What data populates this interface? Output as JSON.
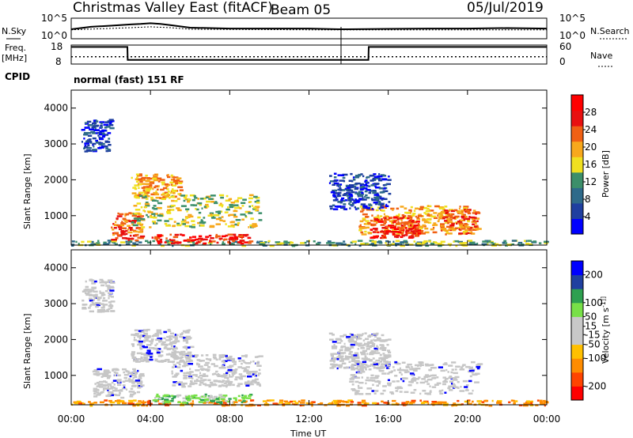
{
  "header": {
    "title": "Christmas Valley East (fitACF)",
    "beam": "Beam 05",
    "date": "05/Jul/2019"
  },
  "top_panels": {
    "n_sky_label": "N.Sky",
    "n_search_label": "N.Search",
    "count_top_tick": "10^5",
    "count_bottom_tick": "10^0",
    "freq_label_line1": "Freq.",
    "freq_label_line2": "[MHz]",
    "freq_ticks": [
      "18",
      "8"
    ],
    "nave_label": "Nave",
    "nave_ticks": [
      "60",
      "0"
    ],
    "cpid_label": "CPID",
    "cpid_value": "normal (fast) 151 RF"
  },
  "colors": {
    "power_scale": [
      "#0000ff",
      "#1f3fa0",
      "#2e6a8a",
      "#3c8f6a",
      "#f0e020",
      "#f7a81c",
      "#f06014",
      "#e81010",
      "#ff0000"
    ],
    "velocity_scale": [
      "#ff0000",
      "#ff4400",
      "#ff8c00",
      "#ffc000",
      "#c8c8c8",
      "#c8c8c8",
      "#78e048",
      "#2ea050",
      "#2040a0",
      "#0000ff"
    ],
    "ground_scatter": "#c6c6c6"
  },
  "chart_data": [
    {
      "type": "line",
      "title": "",
      "series": [
        {
          "name": "N.Sky",
          "x": [
            "00:00",
            "01:00",
            "02:00",
            "03:00",
            "03:30",
            "04:00",
            "04:30",
            "05:00",
            "06:00",
            "08:00",
            "10:00",
            "12:00",
            "13:30",
            "14:00",
            "16:00",
            "18:00",
            "20:00",
            "22:00",
            "24:00"
          ],
          "values": [
            200,
            800,
            1500,
            3000,
            4000,
            6000,
            4000,
            2000,
            500,
            300,
            300,
            300,
            200,
            200,
            250,
            300,
            300,
            400,
            300
          ]
        },
        {
          "name": "N.Search",
          "x": [
            "00:00",
            "03:00",
            "04:00",
            "05:00",
            "06:00",
            "12:00",
            "16:00",
            "20:00",
            "24:00"
          ],
          "values": [
            150,
            500,
            800,
            500,
            200,
            150,
            150,
            150,
            150
          ]
        }
      ],
      "ylim": [
        "10^0",
        "10^5"
      ],
      "ytick_labels": [
        "10^5",
        "10^0"
      ]
    },
    {
      "type": "line",
      "title": "",
      "series": [
        {
          "name": "Freq.",
          "x": [
            "00:00",
            "02:50",
            "02:51",
            "15:00",
            "15:01",
            "24:00"
          ],
          "values": [
            17.0,
            17.0,
            10.2,
            10.2,
            17.0,
            17.0
          ]
        },
        {
          "name": "Nave",
          "x": [
            "00:00",
            "24:00"
          ],
          "values": [
            23,
            23
          ]
        }
      ],
      "ylabel": "Freq. [MHz]",
      "ylim": [
        8,
        18
      ],
      "ytick_labels": [
        "18",
        "8"
      ],
      "y2label": "Nave",
      "y2lim": [
        0,
        60
      ],
      "y2tick_labels": [
        "60",
        "0"
      ]
    },
    {
      "type": "heatmap",
      "title": "",
      "xlabel": "",
      "ylabel": "Slant Range [km]",
      "colorbar_label": "Power [dB]",
      "colorbar_ticks": [
        4,
        8,
        12,
        16,
        20,
        24,
        28
      ],
      "clim": [
        0,
        32
      ],
      "xlim": [
        "00:00",
        "24:00"
      ],
      "ylim": [
        180,
        4500
      ],
      "yticks": [
        1000,
        2000,
        3000,
        4000
      ],
      "xtick_labels": [],
      "patches": [
        {
          "t0": 0.0,
          "t1": 24.0,
          "r0": 180,
          "r1": 330,
          "level": 3
        },
        {
          "t0": 2.0,
          "t1": 3.5,
          "r0": 330,
          "r1": 1100,
          "level": 6
        },
        {
          "t0": 3.0,
          "t1": 5.5,
          "r0": 1500,
          "r1": 2200,
          "level": 5
        },
        {
          "t0": 3.0,
          "t1": 9.5,
          "r0": 700,
          "r1": 1600,
          "level": 4
        },
        {
          "t0": 4.0,
          "t1": 9.0,
          "r0": 250,
          "r1": 500,
          "level": 7
        },
        {
          "t0": 0.5,
          "t1": 2.0,
          "r0": 2800,
          "r1": 3700,
          "level": 1
        },
        {
          "t0": 14.5,
          "t1": 20.0,
          "r0": 500,
          "r1": 1300,
          "level": 5
        },
        {
          "t0": 15.0,
          "t1": 17.5,
          "r0": 400,
          "r1": 1000,
          "level": 7
        },
        {
          "t0": 18.5,
          "t1": 20.5,
          "r0": 500,
          "r1": 1200,
          "level": 6
        },
        {
          "t0": 13.0,
          "t1": 16.0,
          "r0": 1200,
          "r1": 2200,
          "level": 1
        }
      ]
    },
    {
      "type": "heatmap",
      "title": "",
      "xlabel": "Time UT",
      "ylabel": "Slant Range [km]",
      "colorbar_label": "Velocity [m s^-1]",
      "colorbar_ticks": [
        -200,
        -100,
        -50,
        -15,
        15,
        50,
        100,
        200
      ],
      "clim": [
        -250,
        250
      ],
      "xlim": [
        "00:00",
        "24:00"
      ],
      "ylim": [
        180,
        4500
      ],
      "yticks": [
        1000,
        2000,
        3000,
        4000
      ],
      "xtick_labels": [
        "00:00",
        "04:00",
        "08:00",
        "12:00",
        "16:00",
        "20:00",
        "00:00"
      ],
      "patches": [
        {
          "t0": 0.0,
          "t1": 24.0,
          "r0": 180,
          "r1": 330,
          "level": 2
        },
        {
          "t0": 1.0,
          "t1": 3.5,
          "r0": 400,
          "r1": 1200,
          "level": 4
        },
        {
          "t0": 3.0,
          "t1": 6.0,
          "r0": 1400,
          "r1": 2300,
          "level": 4
        },
        {
          "t0": 5.0,
          "t1": 9.5,
          "r0": 700,
          "r1": 1600,
          "level": 4
        },
        {
          "t0": 4.0,
          "t1": 9.0,
          "r0": 250,
          "r1": 500,
          "level": 6
        },
        {
          "t0": 14.0,
          "t1": 20.5,
          "r0": 500,
          "r1": 1400,
          "level": 4
        },
        {
          "t0": 13.0,
          "t1": 16.0,
          "r0": 1200,
          "r1": 2200,
          "level": 4
        },
        {
          "t0": 0.5,
          "t1": 2.0,
          "r0": 2800,
          "r1": 3700,
          "level": 4
        }
      ]
    }
  ]
}
